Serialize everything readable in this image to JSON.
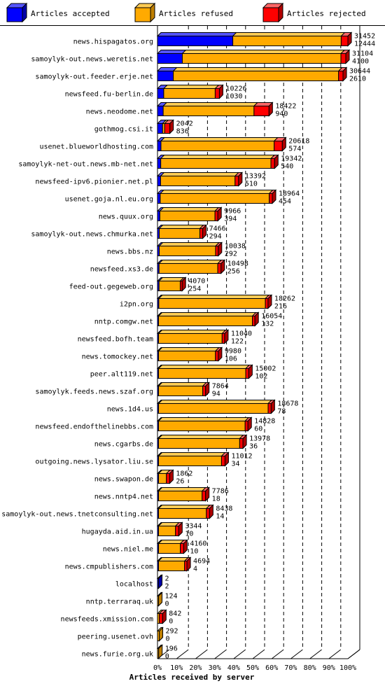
{
  "chart_data": {
    "type": "bar",
    "orientation": "horizontal",
    "stacked": true,
    "title": "",
    "xlabel": "Articles received by server",
    "ylabel": "",
    "xlim": [
      0,
      100
    ],
    "x_ticks": [
      "0%",
      "10%",
      "20%",
      "30%",
      "40%",
      "50%",
      "60%",
      "70%",
      "80%",
      "90%",
      "100%"
    ],
    "legend": {
      "placement": "top",
      "items": [
        {
          "label": "Articles accepted",
          "color": "#0000ff"
        },
        {
          "label": "Articles refused",
          "color": "#ffaa00"
        },
        {
          "label": "Articles rejected",
          "color": "#ff0000"
        }
      ]
    },
    "series_names": [
      "Articles accepted",
      "Articles refused",
      "Articles rejected"
    ],
    "rows": [
      {
        "server": "news.hispagatos.org",
        "accepted": 12444,
        "refused": 17900,
        "rejected": 1108,
        "total_label": "31452",
        "accepted_label": "12444"
      },
      {
        "server": "samoylyk-out.news.weretis.net",
        "accepted": 4100,
        "refused": 26200,
        "rejected": 804,
        "total_label": "31104",
        "accepted_label": "4100"
      },
      {
        "server": "samoylyk-out.feeder.erje.net",
        "accepted": 2610,
        "refused": 27300,
        "rejected": 734,
        "total_label": "30644",
        "accepted_label": "2610"
      },
      {
        "server": "newsfeed.fu-berlin.de",
        "accepted": 1030,
        "refused": 8500,
        "rejected": 696,
        "total_label": "10226",
        "accepted_label": "1030"
      },
      {
        "server": "news.neodome.net",
        "accepted": 940,
        "refused": 15000,
        "rejected": 2482,
        "total_label": "18422",
        "accepted_label": "940"
      },
      {
        "server": "gothmog.csi.it",
        "accepted": 836,
        "refused": 350,
        "rejected": 856,
        "total_label": "2042",
        "accepted_label": "836"
      },
      {
        "server": "usenet.blueworldhosting.com",
        "accepted": 574,
        "refused": 18700,
        "rejected": 1344,
        "total_label": "20618",
        "accepted_label": "574"
      },
      {
        "server": "samoylyk-net-out.news.mb-net.net",
        "accepted": 540,
        "refused": 18200,
        "rejected": 602,
        "total_label": "19342",
        "accepted_label": "540"
      },
      {
        "server": "newsfeed-ipv6.pionier.net.pl",
        "accepted": 510,
        "refused": 12300,
        "rejected": 582,
        "total_label": "13392",
        "accepted_label": "510"
      },
      {
        "server": "usenet.goja.nl.eu.org",
        "accepted": 454,
        "refused": 18000,
        "rejected": 510,
        "total_label": "18964",
        "accepted_label": "454"
      },
      {
        "server": "news.quux.org",
        "accepted": 394,
        "refused": 9100,
        "rejected": 472,
        "total_label": "9966",
        "accepted_label": "394"
      },
      {
        "server": "samoylyk-out.news.chmurka.net",
        "accepted": 294,
        "refused": 6700,
        "rejected": 472,
        "total_label": "7466",
        "accepted_label": "294"
      },
      {
        "server": "news.bbs.nz",
        "accepted": 292,
        "refused": 9300,
        "rejected": 446,
        "total_label": "10038",
        "accepted_label": "292"
      },
      {
        "server": "newsfeed.xs3.de",
        "accepted": 256,
        "refused": 9700,
        "rejected": 542,
        "total_label": "10498",
        "accepted_label": "256"
      },
      {
        "server": "feed-out.gegeweb.org",
        "accepted": 254,
        "refused": 3500,
        "rejected": 316,
        "total_label": "4070",
        "accepted_label": "254"
      },
      {
        "server": "i2pn.org",
        "accepted": 216,
        "refused": 17600,
        "rejected": 446,
        "total_label": "18262",
        "accepted_label": "216"
      },
      {
        "server": "nntp.comgw.net",
        "accepted": 132,
        "refused": 15500,
        "rejected": 422,
        "total_label": "16054",
        "accepted_label": "132"
      },
      {
        "server": "newsfeed.bofh.team",
        "accepted": 122,
        "refused": 10500,
        "rejected": 418,
        "total_label": "11040",
        "accepted_label": "122"
      },
      {
        "server": "news.tomockey.net",
        "accepted": 106,
        "refused": 9400,
        "rejected": 474,
        "total_label": "9980",
        "accepted_label": "106"
      },
      {
        "server": "peer.alt119.net",
        "accepted": 102,
        "refused": 14400,
        "rejected": 500,
        "total_label": "15002",
        "accepted_label": "102"
      },
      {
        "server": "samoylyk.feeds.news.szaf.org",
        "accepted": 94,
        "refused": 7300,
        "rejected": 470,
        "total_label": "7864",
        "accepted_label": "94"
      },
      {
        "server": "news.1d4.us",
        "accepted": 78,
        "refused": 18100,
        "rejected": 500,
        "total_label": "18678",
        "accepted_label": "78"
      },
      {
        "server": "newsfeed.endofthelinebbs.com",
        "accepted": 60,
        "refused": 14300,
        "rejected": 468,
        "total_label": "14828",
        "accepted_label": "60"
      },
      {
        "server": "news.cgarbs.de",
        "accepted": 36,
        "refused": 13400,
        "rejected": 542,
        "total_label": "13978",
        "accepted_label": "36"
      },
      {
        "server": "outgoing.news.lysator.liu.se",
        "accepted": 34,
        "refused": 10400,
        "rejected": 578,
        "total_label": "11012",
        "accepted_label": "34"
      },
      {
        "server": "news.swapon.de",
        "accepted": 26,
        "refused": 1300,
        "rejected": 536,
        "total_label": "1862",
        "accepted_label": "26"
      },
      {
        "server": "news.nntp4.net",
        "accepted": 18,
        "refused": 7200,
        "rejected": 568,
        "total_label": "7786",
        "accepted_label": "18"
      },
      {
        "server": "samoylyk-out.news.tnetconsulting.net",
        "accepted": 14,
        "refused": 7900,
        "rejected": 524,
        "total_label": "8438",
        "accepted_label": "14"
      },
      {
        "server": "hugayda.aid.in.ua",
        "accepted": 10,
        "refused": 2800,
        "rejected": 534,
        "total_label": "3344",
        "accepted_label": "10"
      },
      {
        "server": "news.niel.me",
        "accepted": 10,
        "refused": 3600,
        "rejected": 550,
        "total_label": "4160",
        "accepted_label": "10"
      },
      {
        "server": "news.cmpublishers.com",
        "accepted": 4,
        "refused": 4300,
        "rejected": 390,
        "total_label": "4694",
        "accepted_label": "4"
      },
      {
        "server": "localhost",
        "accepted": 2,
        "refused": 0,
        "rejected": 0,
        "total_label": "2",
        "accepted_label": "2"
      },
      {
        "server": "nntp.terraraq.uk",
        "accepted": 0,
        "refused": 124,
        "rejected": 0,
        "total_label": "124",
        "accepted_label": "0"
      },
      {
        "server": "newsfeeds.xmission.com",
        "accepted": 0,
        "refused": 300,
        "rejected": 542,
        "total_label": "842",
        "accepted_label": "0"
      },
      {
        "server": "peering.usenet.ovh",
        "accepted": 0,
        "refused": 292,
        "rejected": 0,
        "total_label": "292",
        "accepted_label": "0"
      },
      {
        "server": "news.furie.org.uk",
        "accepted": 0,
        "refused": 196,
        "rejected": 0,
        "total_label": "196",
        "accepted_label": "0"
      }
    ],
    "colors": {
      "accepted": "#0000ff",
      "accepted_top": "#5555ff",
      "accepted_side": "#0000aa",
      "refused": "#ffaa00",
      "refused_top": "#ffcc55",
      "refused_side": "#c08000",
      "rejected": "#ff0000",
      "rejected_top": "#ff6666",
      "rejected_side": "#b00000",
      "empty_bar": "#c08000"
    }
  }
}
